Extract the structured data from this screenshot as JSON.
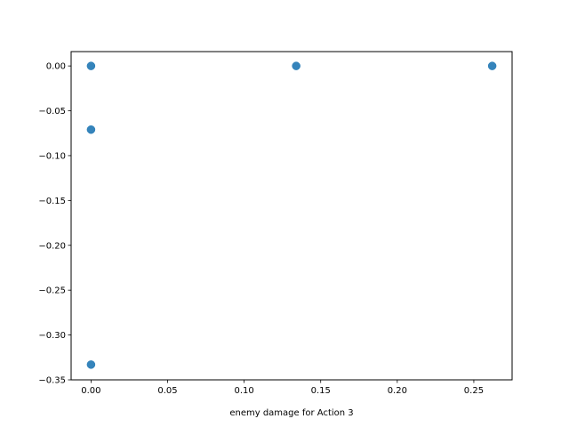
{
  "chart_data": {
    "type": "scatter",
    "xlabel": "enemy damage for Action 3",
    "ylabel": "",
    "xlim": [
      -0.013,
      0.275
    ],
    "ylim": [
      -0.35,
      0.016
    ],
    "x_ticks": [
      0.0,
      0.05,
      0.1,
      0.15,
      0.2,
      0.25
    ],
    "x_tick_labels": [
      "0.00",
      "0.05",
      "0.10",
      "0.15",
      "0.20",
      "0.25"
    ],
    "y_ticks": [
      0.0,
      -0.05,
      -0.1,
      -0.15,
      -0.2,
      -0.25,
      -0.3,
      -0.35
    ],
    "y_tick_labels": [
      "0.00",
      "−0.05",
      "−0.10",
      "−0.15",
      "−0.20",
      "−0.25",
      "−0.30",
      "−0.35"
    ],
    "grid": false,
    "series": [
      {
        "color": "#1f77b4",
        "points": [
          {
            "x": 0.0,
            "y": 0.0
          },
          {
            "x": 0.0,
            "y": -0.071
          },
          {
            "x": 0.0,
            "y": -0.333
          },
          {
            "x": 0.134,
            "y": 0.0
          },
          {
            "x": 0.262,
            "y": 0.0
          }
        ]
      }
    ]
  }
}
